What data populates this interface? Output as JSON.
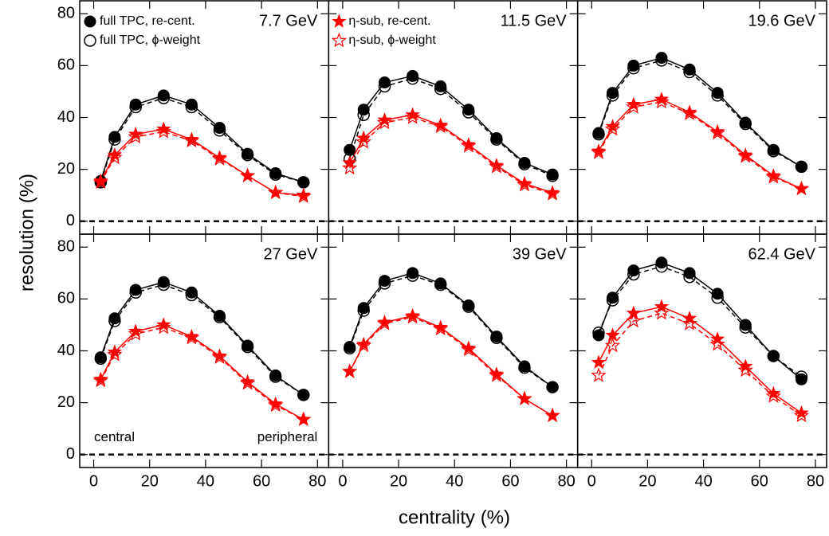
{
  "axis_labels": {
    "x": "centrality (%)",
    "y": "resolution (%)"
  },
  "chart_data": [
    {
      "type": "line",
      "title": "7.7 GeV",
      "x": [
        2.5,
        7.5,
        15,
        25,
        35,
        45,
        55,
        65,
        75
      ],
      "xlim": [
        -5,
        84
      ],
      "xticks": [
        0,
        20,
        40,
        60,
        80
      ],
      "ylim": [
        -5,
        85
      ],
      "yticks": [
        0,
        20,
        40,
        60,
        80
      ],
      "xtick_labels": false,
      "ytick_labels": true,
      "reference_line": 0,
      "series": [
        {
          "name": "full TPC, re-cent.",
          "color": "#000000",
          "marker": "circle",
          "line_style": "solid",
          "values": [
            15.5,
            32.5,
            45,
            48.5,
            45,
            36,
            26,
            18.5,
            15
          ]
        },
        {
          "name": "full TPC, ϕ-weight",
          "color": "#000000",
          "marker": "circle-open",
          "line_style": "dashed",
          "values": [
            15,
            31.5,
            44,
            47.5,
            44,
            35,
            25.5,
            18,
            15
          ]
        },
        {
          "color": "#ff0000",
          "marker": "star",
          "line_style": "solid",
          "values": [
            15.5,
            25.5,
            33.5,
            35.5,
            31.5,
            24.5,
            17.5,
            11,
            10
          ]
        },
        {
          "color": "#ff0000",
          "marker": "star-open",
          "line_style": "dashed",
          "values": [
            15,
            24.5,
            32.5,
            34.5,
            31,
            24,
            17.5,
            11,
            9.5
          ]
        }
      ]
    },
    {
      "type": "line",
      "title": "11.5 GeV",
      "x": [
        2.5,
        7.5,
        15,
        25,
        35,
        45,
        55,
        65,
        75
      ],
      "xlim": [
        -5,
        84
      ],
      "xticks": [
        0,
        20,
        40,
        60,
        80
      ],
      "ylim": [
        -5,
        85
      ],
      "yticks": [
        0,
        20,
        40,
        60,
        80
      ],
      "xtick_labels": false,
      "ytick_labels": false,
      "reference_line": 0,
      "series": [
        {
          "color": "#000000",
          "marker": "circle",
          "line_style": "solid",
          "values": [
            27.5,
            43,
            53.5,
            56,
            52,
            43,
            32,
            22.5,
            18
          ]
        },
        {
          "color": "#000000",
          "marker": "circle-open",
          "line_style": "dashed",
          "values": [
            24,
            41,
            52,
            55,
            51,
            42,
            31.5,
            22,
            17.5
          ]
        },
        {
          "name": "η-sub, re-cent.",
          "color": "#ff0000",
          "marker": "star",
          "line_style": "solid",
          "values": [
            22.5,
            32,
            39,
            41,
            37,
            29.5,
            21.5,
            14.5,
            11
          ]
        },
        {
          "name": "η-sub, ϕ-weight",
          "color": "#ff0000",
          "marker": "star-open",
          "line_style": "dashed",
          "values": [
            20.5,
            30.5,
            38,
            40,
            36.5,
            29,
            21,
            14,
            10.5
          ]
        }
      ]
    },
    {
      "type": "line",
      "title": "19.6 GeV",
      "x": [
        2.5,
        7.5,
        15,
        25,
        35,
        45,
        55,
        65,
        75
      ],
      "xlim": [
        -5,
        84
      ],
      "xticks": [
        0,
        20,
        40,
        60,
        80
      ],
      "ylim": [
        -5,
        85
      ],
      "yticks": [
        0,
        20,
        40,
        60,
        80
      ],
      "xtick_labels": false,
      "ytick_labels": false,
      "reference_line": 0,
      "series": [
        {
          "color": "#000000",
          "marker": "circle",
          "line_style": "solid",
          "values": [
            34,
            49.5,
            60,
            63,
            58.5,
            49.5,
            38,
            27.5,
            21
          ]
        },
        {
          "color": "#000000",
          "marker": "circle-open",
          "line_style": "dashed",
          "values": [
            33.5,
            48.5,
            59,
            62,
            57.5,
            48.5,
            37.5,
            27,
            21
          ]
        },
        {
          "color": "#ff0000",
          "marker": "star",
          "line_style": "solid",
          "values": [
            27,
            36.5,
            45,
            47,
            42,
            34.5,
            25.5,
            17.5,
            12.5
          ]
        },
        {
          "color": "#ff0000",
          "marker": "star-open",
          "line_style": "dashed",
          "values": [
            26.5,
            35.5,
            44,
            46,
            41.5,
            34,
            25,
            17,
            12.5
          ]
        }
      ]
    },
    {
      "type": "line",
      "title": "27 GeV",
      "x": [
        2.5,
        7.5,
        15,
        25,
        35,
        45,
        55,
        65,
        75
      ],
      "xlim": [
        -5,
        84
      ],
      "xticks": [
        0,
        20,
        40,
        60,
        80
      ],
      "ylim": [
        -5,
        85
      ],
      "yticks": [
        0,
        20,
        40,
        60,
        80
      ],
      "xtick_labels": true,
      "ytick_labels": true,
      "reference_line": 0,
      "annotations": [
        "central",
        "peripheral"
      ],
      "series": [
        {
          "color": "#000000",
          "marker": "circle",
          "line_style": "solid",
          "values": [
            37.5,
            52.5,
            63.5,
            66.5,
            62.5,
            53.5,
            42,
            30.5,
            23
          ]
        },
        {
          "color": "#000000",
          "marker": "circle-open",
          "line_style": "dashed",
          "values": [
            37,
            51.5,
            62.5,
            65.5,
            61.5,
            53,
            41.5,
            30,
            23
          ]
        },
        {
          "color": "#ff0000",
          "marker": "star",
          "line_style": "solid",
          "values": [
            29,
            39.5,
            47.5,
            50,
            45.5,
            38,
            28,
            19.5,
            13.5
          ]
        },
        {
          "color": "#ff0000",
          "marker": "star-open",
          "line_style": "dashed",
          "values": [
            28.5,
            38.5,
            46.5,
            49,
            45,
            37.5,
            27.5,
            19,
            13.5
          ]
        }
      ]
    },
    {
      "type": "line",
      "title": "39 GeV",
      "x": [
        2.5,
        7.5,
        15,
        25,
        35,
        45,
        55,
        65,
        75
      ],
      "xlim": [
        -5,
        84
      ],
      "xticks": [
        0,
        20,
        40,
        60,
        80
      ],
      "ylim": [
        -5,
        85
      ],
      "yticks": [
        0,
        20,
        40,
        60,
        80
      ],
      "xtick_labels": true,
      "ytick_labels": false,
      "reference_line": 0,
      "series": [
        {
          "color": "#000000",
          "marker": "circle",
          "line_style": "solid",
          "values": [
            41.5,
            56.5,
            67,
            70,
            66,
            57.5,
            45.5,
            34,
            26
          ]
        },
        {
          "color": "#000000",
          "marker": "circle-open",
          "line_style": "dashed",
          "values": [
            41,
            55.5,
            66,
            69,
            65.5,
            57,
            45,
            33.5,
            26
          ]
        },
        {
          "color": "#ff0000",
          "marker": "star",
          "line_style": "solid",
          "values": [
            32,
            42.5,
            51,
            53.5,
            49,
            41,
            31,
            21.5,
            15
          ]
        },
        {
          "color": "#ff0000",
          "marker": "star-open",
          "line_style": "dashed",
          "values": [
            32,
            42,
            50.5,
            53,
            48.5,
            40.5,
            30.5,
            21.5,
            15
          ]
        }
      ]
    },
    {
      "type": "line",
      "title": "62.4 GeV",
      "x": [
        2.5,
        7.5,
        15,
        25,
        35,
        45,
        55,
        65,
        75
      ],
      "xlim": [
        -5,
        84
      ],
      "xticks": [
        0,
        20,
        40,
        60,
        80
      ],
      "ylim": [
        -5,
        85
      ],
      "yticks": [
        0,
        20,
        40,
        60,
        80
      ],
      "xtick_labels": true,
      "ytick_labels": false,
      "reference_line": 0,
      "series": [
        {
          "color": "#000000",
          "marker": "circle",
          "line_style": "solid",
          "values": [
            46,
            60.5,
            71,
            74,
            70,
            62,
            50,
            38,
            29
          ]
        },
        {
          "color": "#000000",
          "marker": "circle-open",
          "line_style": "dashed",
          "values": [
            47,
            59.5,
            69.5,
            72.5,
            68.5,
            60.5,
            49,
            38,
            30
          ]
        },
        {
          "color": "#ff0000",
          "marker": "star",
          "line_style": "solid",
          "values": [
            35.5,
            46,
            54.5,
            57,
            52.5,
            44.5,
            34,
            23.5,
            16
          ]
        },
        {
          "color": "#ff0000",
          "marker": "star-open",
          "line_style": "dashed",
          "values": [
            30.5,
            42,
            51.5,
            54.5,
            50.5,
            42.5,
            32.5,
            22.5,
            15
          ]
        }
      ]
    }
  ]
}
